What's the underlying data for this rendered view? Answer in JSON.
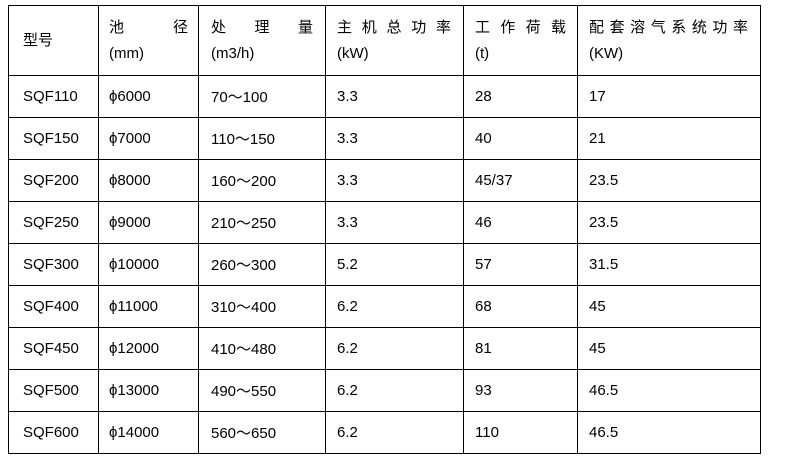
{
  "colors": {
    "background": "#ffffff",
    "border": "#000000",
    "text": "#000000"
  },
  "table": {
    "columns": [
      {
        "id": "model",
        "line1": "型号",
        "line2": "",
        "distribute": false
      },
      {
        "id": "diameter",
        "line1": "池径",
        "line2": "(mm)",
        "distribute": true
      },
      {
        "id": "capacity",
        "line1": "处理量",
        "line2": "(m3/h)",
        "distribute": true
      },
      {
        "id": "main-power",
        "line1": "主机总功率",
        "line2": "(kW)",
        "distribute": true
      },
      {
        "id": "work-load",
        "line1": "工作荷载",
        "line2": "(t)",
        "distribute": true
      },
      {
        "id": "air-power",
        "line1": "配套溶气系统功率",
        "line2": "(KW)",
        "distribute": true
      }
    ],
    "rows": [
      [
        "SQF110",
        "ϕ6000",
        "70～100",
        "3.3",
        "28",
        "17"
      ],
      [
        "SQF150",
        "ϕ7000",
        "110～150",
        "3.3",
        "40",
        "21"
      ],
      [
        "SQF200",
        "ϕ8000",
        "160～200",
        "3.3",
        "45/37",
        "23.5"
      ],
      [
        "SQF250",
        "ϕ9000",
        "210～250",
        "3.3",
        "46",
        "23.5"
      ],
      [
        "SQF300",
        "ϕ10000",
        "260～300",
        "5.2",
        "57",
        "31.5"
      ],
      [
        "SQF400",
        "ϕ11000",
        "310～400",
        "6.2",
        "68",
        "45"
      ],
      [
        "SQF450",
        "ϕ12000",
        "410～480",
        "6.2",
        "81",
        "45"
      ],
      [
        "SQF500",
        "ϕ13000",
        "490～550",
        "6.2",
        "93",
        "46.5"
      ],
      [
        "SQF600",
        "ϕ14000",
        "560～650",
        "6.2",
        "110",
        "46.5"
      ]
    ]
  }
}
